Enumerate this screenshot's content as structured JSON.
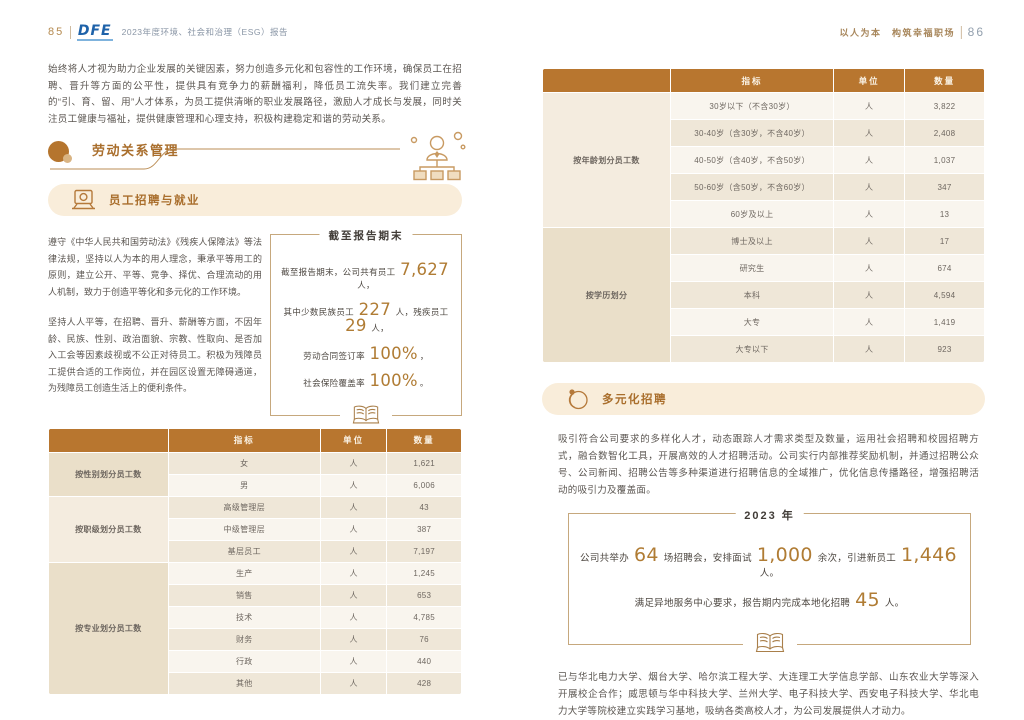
{
  "colors": {
    "accent_brown": "#a96e2c",
    "table_header_bg": "#b8762f",
    "stat_number": "#b07c34",
    "logo_blue": "#1e62a9",
    "pill_bg": "#f9edda",
    "body_text": "#5b5651"
  },
  "left": {
    "page_number": "85",
    "logo": "DFE",
    "header_title": "2023年度环境、社会和治理（ESG）报告",
    "intro": "始终将人才视为助力企业发展的关键因素，努力创造多元化和包容性的工作环境，确保员工在招聘、晋升等方面的公平性，提供具有竞争力的薪酬福利，降低员工流失率。我们建立完善的“引、育、留、用”人才体系，为员工提供清晰的职业发展路径，激励人才成长与发展，同时关注员工健康与福祉，提供健康管理和心理支持，积极构建稳定和谐的劳动关系。",
    "section_title": "劳动关系管理",
    "subsection_title": "员工招聘与就业",
    "para1": "遵守《中华人民共和国劳动法》《残疾人保障法》等法律法规，坚持以人为本的用人理念，秉承平等用工的原则，建立公开、平等、竞争、择优、合理流动的用人机制，致力于创造平等化和多元化的工作环境。",
    "para2": "坚持人人平等，在招聘、晋升、薪酬等方面，不因年龄、民族、性别、政治面貌、宗教、性取向、是否加入工会等因素歧视或不公正对待员工。积极为残障员工提供合适的工作岗位，并在园区设置无障碍通道，为残障员工创造生活上的便利条件。",
    "statbox": {
      "title": "截至报告期末",
      "lines": [
        [
          {
            "t": "截至报告期末，公司共有员工 "
          },
          {
            "n": "7,627"
          },
          {
            "t": " 人，"
          }
        ],
        [
          {
            "t": "其中少数民族员工 "
          },
          {
            "n": "227"
          },
          {
            "t": " 人，残疾员工 "
          },
          {
            "n": "29"
          },
          {
            "t": " 人，"
          }
        ],
        [
          {
            "t": "劳动合同签订率 "
          },
          {
            "n": "100%"
          },
          {
            "t": "，"
          }
        ],
        [
          {
            "t": "社会保险覆盖率 "
          },
          {
            "n": "100%"
          },
          {
            "t": "。"
          }
        ]
      ]
    }
  },
  "right": {
    "page_number": "86",
    "header_title": "以人为本　构筑幸福职场",
    "subsection_title": "多元化招聘",
    "para1": "吸引符合公司要求的多样化人才，动态跟踪人才需求类型及数量，运用社会招聘和校园招聘方式，融合数智化工具，开展高效的人才招聘活动。公司实行内部推荐奖励机制，并通过招聘公众号、公司新闻、招聘公告等多种渠道进行招聘信息的全域推广，优化信息传播路径，增强招聘活动的吸引力及覆盖面。",
    "box2023": {
      "title": "2023 年",
      "lines": [
        [
          {
            "t": "公司共举办 "
          },
          {
            "n": "64"
          },
          {
            "t": " 场招聘会，安排面试 "
          },
          {
            "n": "1,000"
          },
          {
            "t": " 余次，引进新员工 "
          },
          {
            "n": "1,446"
          },
          {
            "t": " 人。"
          }
        ],
        [
          {
            "t": "满足异地服务中心要求，报告期内完成本地化招聘 "
          },
          {
            "n": "45"
          },
          {
            "t": " 人。"
          }
        ]
      ]
    },
    "para2": "已与华北电力大学、烟台大学、哈尔滨工程大学、大连理工大学信息学部、山东农业大学等深入开展校企合作；威思顿与华中科技大学、兰州大学、电子科技大学、西安电子科技大学、华北电力大学等院校建立实践学习基地，吸纳各类高校人才，为公司发展提供人才动力。"
  },
  "tables": [
    {
      "headers": [
        "指标",
        "单位",
        "数量"
      ],
      "groups": [
        {
          "label": "按性别划分员工数",
          "rows": [
            [
              "女",
              "人",
              "1,621"
            ],
            [
              "男",
              "人",
              "6,006"
            ]
          ]
        },
        {
          "label": "按职级划分员工数",
          "rows": [
            [
              "高级管理层",
              "人",
              "43"
            ],
            [
              "中级管理层",
              "人",
              "387"
            ],
            [
              "基层员工",
              "人",
              "7,197"
            ]
          ]
        },
        {
          "label": "按专业划分员工数",
          "rows": [
            [
              "生产",
              "人",
              "1,245"
            ],
            [
              "销售",
              "人",
              "653"
            ],
            [
              "技术",
              "人",
              "4,785"
            ],
            [
              "财务",
              "人",
              "76"
            ],
            [
              "行政",
              "人",
              "440"
            ],
            [
              "其他",
              "人",
              "428"
            ]
          ]
        }
      ]
    },
    {
      "headers": [
        "指标",
        "单位",
        "数量"
      ],
      "groups": [
        {
          "label": "按年龄划分员工数",
          "rows": [
            [
              "30岁以下（不含30岁）",
              "人",
              "3,822"
            ],
            [
              "30-40岁（含30岁，不含40岁）",
              "人",
              "2,408"
            ],
            [
              "40-50岁（含40岁，不含50岁）",
              "人",
              "1,037"
            ],
            [
              "50-60岁（含50岁，不含60岁）",
              "人",
              "347"
            ],
            [
              "60岁及以上",
              "人",
              "13"
            ]
          ]
        },
        {
          "label": "按学历划分",
          "rows": [
            [
              "博士及以上",
              "人",
              "17"
            ],
            [
              "研究生",
              "人",
              "674"
            ],
            [
              "本科",
              "人",
              "4,594"
            ],
            [
              "大专",
              "人",
              "1,419"
            ],
            [
              "大专以下",
              "人",
              "923"
            ]
          ]
        }
      ]
    }
  ],
  "icons": {
    "section_dot": "section-dot-icon",
    "org_chart": "org-chart-icon",
    "laptop": "laptop-icon",
    "heads": "diversity-heads-icon",
    "book": "open-book-icon"
  }
}
